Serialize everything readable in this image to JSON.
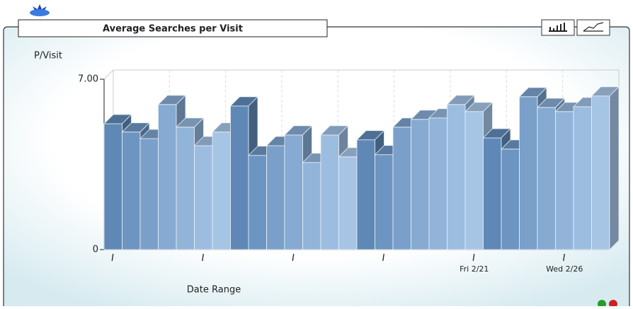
{
  "chart_data": {
    "type": "bar3d",
    "title": "Average Searches per Visit",
    "y_label": "P/Visit",
    "x_label": "Date Range",
    "categories": [
      null,
      null,
      null,
      null,
      null,
      null,
      null,
      null,
      null,
      null,
      null,
      null,
      null,
      null,
      null,
      null,
      null,
      null,
      null,
      null,
      "Fri 2/21",
      null,
      null,
      null,
      null,
      "Wed 2/26",
      null,
      null
    ],
    "values": [
      5.17,
      4.83,
      4.56,
      5.96,
      5.03,
      4.27,
      4.83,
      5.9,
      3.87,
      4.27,
      4.71,
      3.58,
      4.71,
      3.81,
      4.51,
      3.9,
      5.03,
      5.35,
      5.41,
      5.96,
      5.67,
      4.59,
      4.13,
      6.28,
      5.84,
      5.67,
      5.87,
      6.31
    ],
    "color": "#7fa3cc",
    "ylim": [
      0,
      7
    ],
    "yticks": [
      0,
      {
        "value": 7,
        "label": "7.00"
      }
    ],
    "grid": true
  }
}
